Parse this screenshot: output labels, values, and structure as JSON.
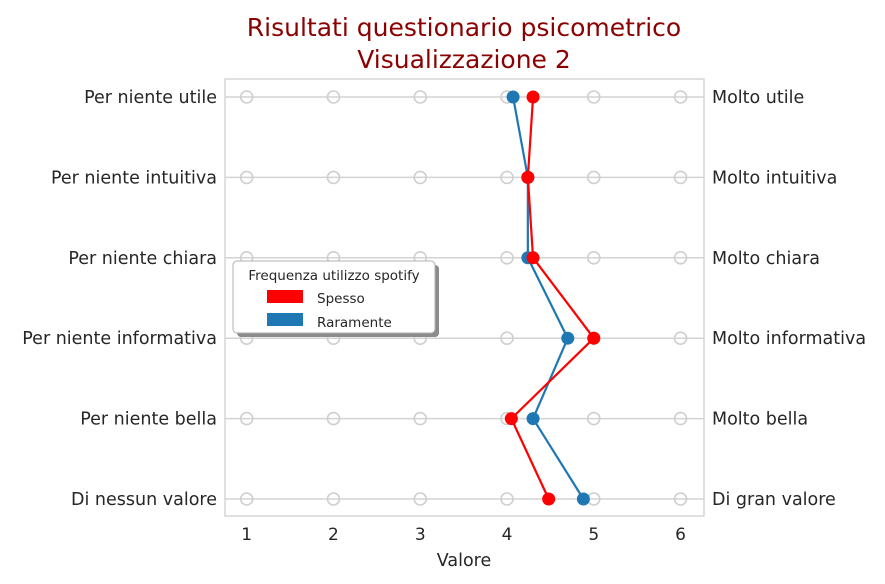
{
  "chart_data": {
    "type": "line",
    "title_line1": "Risultati questionario psicometrico",
    "title_line2": "Visualizzazione 2",
    "xlabel": "Valore",
    "xlim": [
      0.75,
      6.27
    ],
    "x_ticks": [
      1,
      2,
      3,
      4,
      5,
      6
    ],
    "left_labels": [
      "Per niente utile",
      "Per niente intuitiva",
      "Per niente chiara",
      "Per niente informativa",
      "Per niente bella",
      "Di nessun valore"
    ],
    "right_labels": [
      "Molto utile",
      "Molto intuitiva",
      "Molto chiara",
      "Molto informativa",
      "Molto bella",
      "Di gran valore"
    ],
    "scale_points": [
      1,
      2,
      3,
      4,
      5,
      6
    ],
    "legend": {
      "title": "Frequenza utilizzo spotify",
      "placement": "center-left"
    },
    "series": [
      {
        "name": "Spesso",
        "color": "#ff0000",
        "values": [
          4.3,
          4.24,
          4.3,
          5.0,
          4.05,
          4.48
        ]
      },
      {
        "name": "Raramente",
        "color": "#1f77b4",
        "values": [
          4.07,
          4.24,
          4.24,
          4.7,
          4.3,
          4.88
        ]
      }
    ]
  }
}
